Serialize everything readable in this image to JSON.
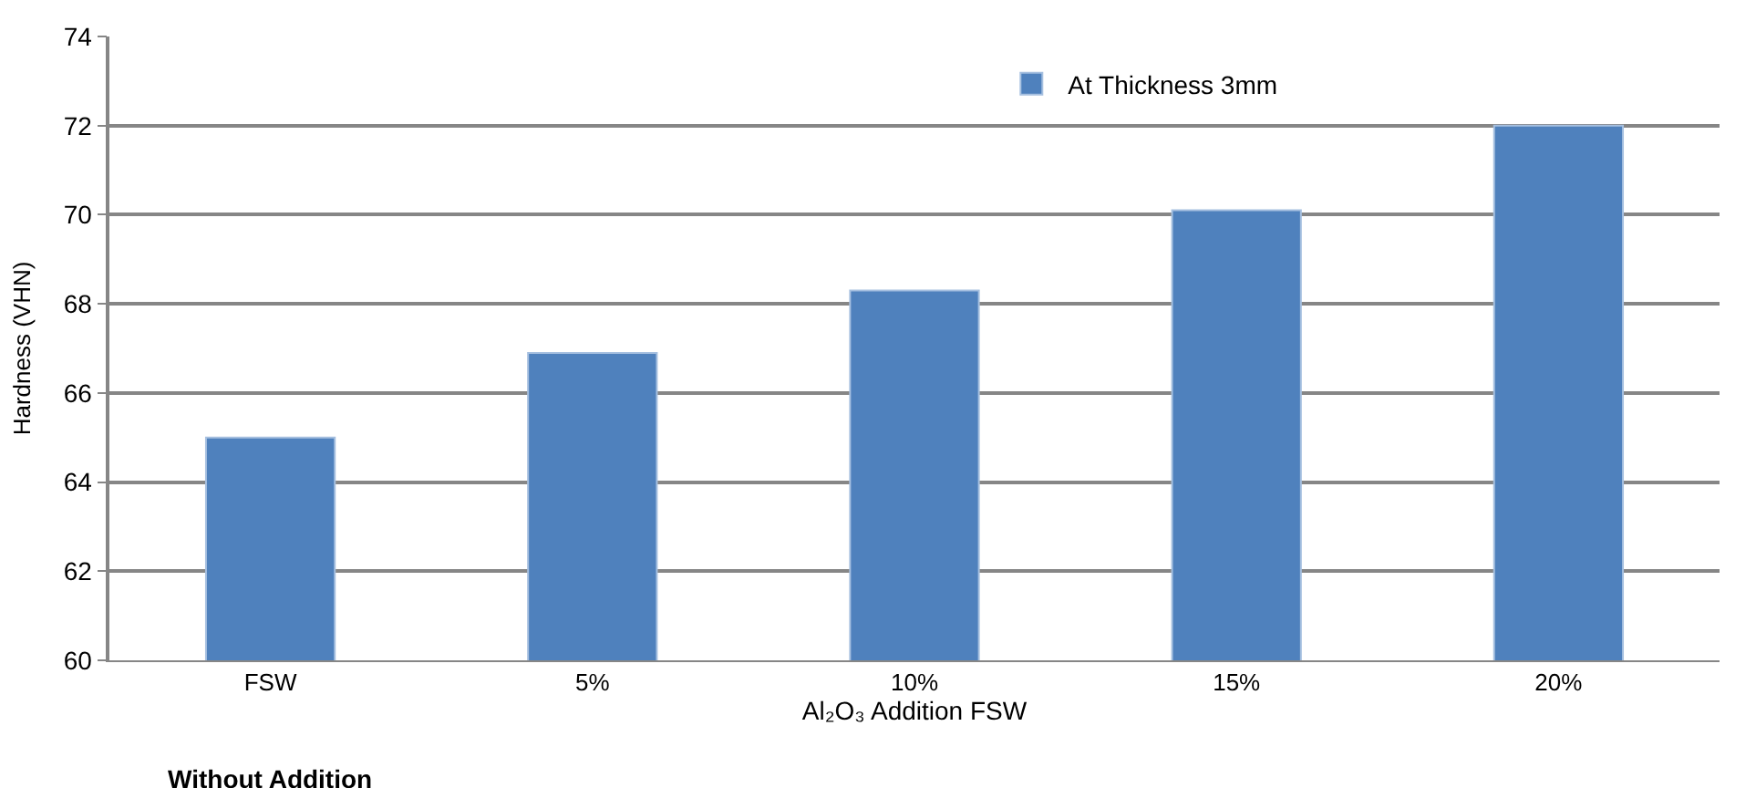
{
  "chart_data": {
    "type": "bar",
    "categories": [
      "FSW",
      "5%",
      "10%",
      "15%",
      "20%"
    ],
    "series": [
      {
        "name": "At Thickness 3mm",
        "color": "#4f81bd",
        "values": [
          65.0,
          66.9,
          68.3,
          70.1,
          72.0
        ]
      }
    ],
    "ylabel": "Hardness (VHN)",
    "xlabel": "Al₂O₃ Addition FSW",
    "annotations": [
      "Without Addition"
    ],
    "ylim": [
      60,
      74
    ],
    "yticks": [
      60,
      62,
      64,
      66,
      68,
      70,
      72,
      74
    ],
    "grid": "y",
    "legend": "top right"
  }
}
